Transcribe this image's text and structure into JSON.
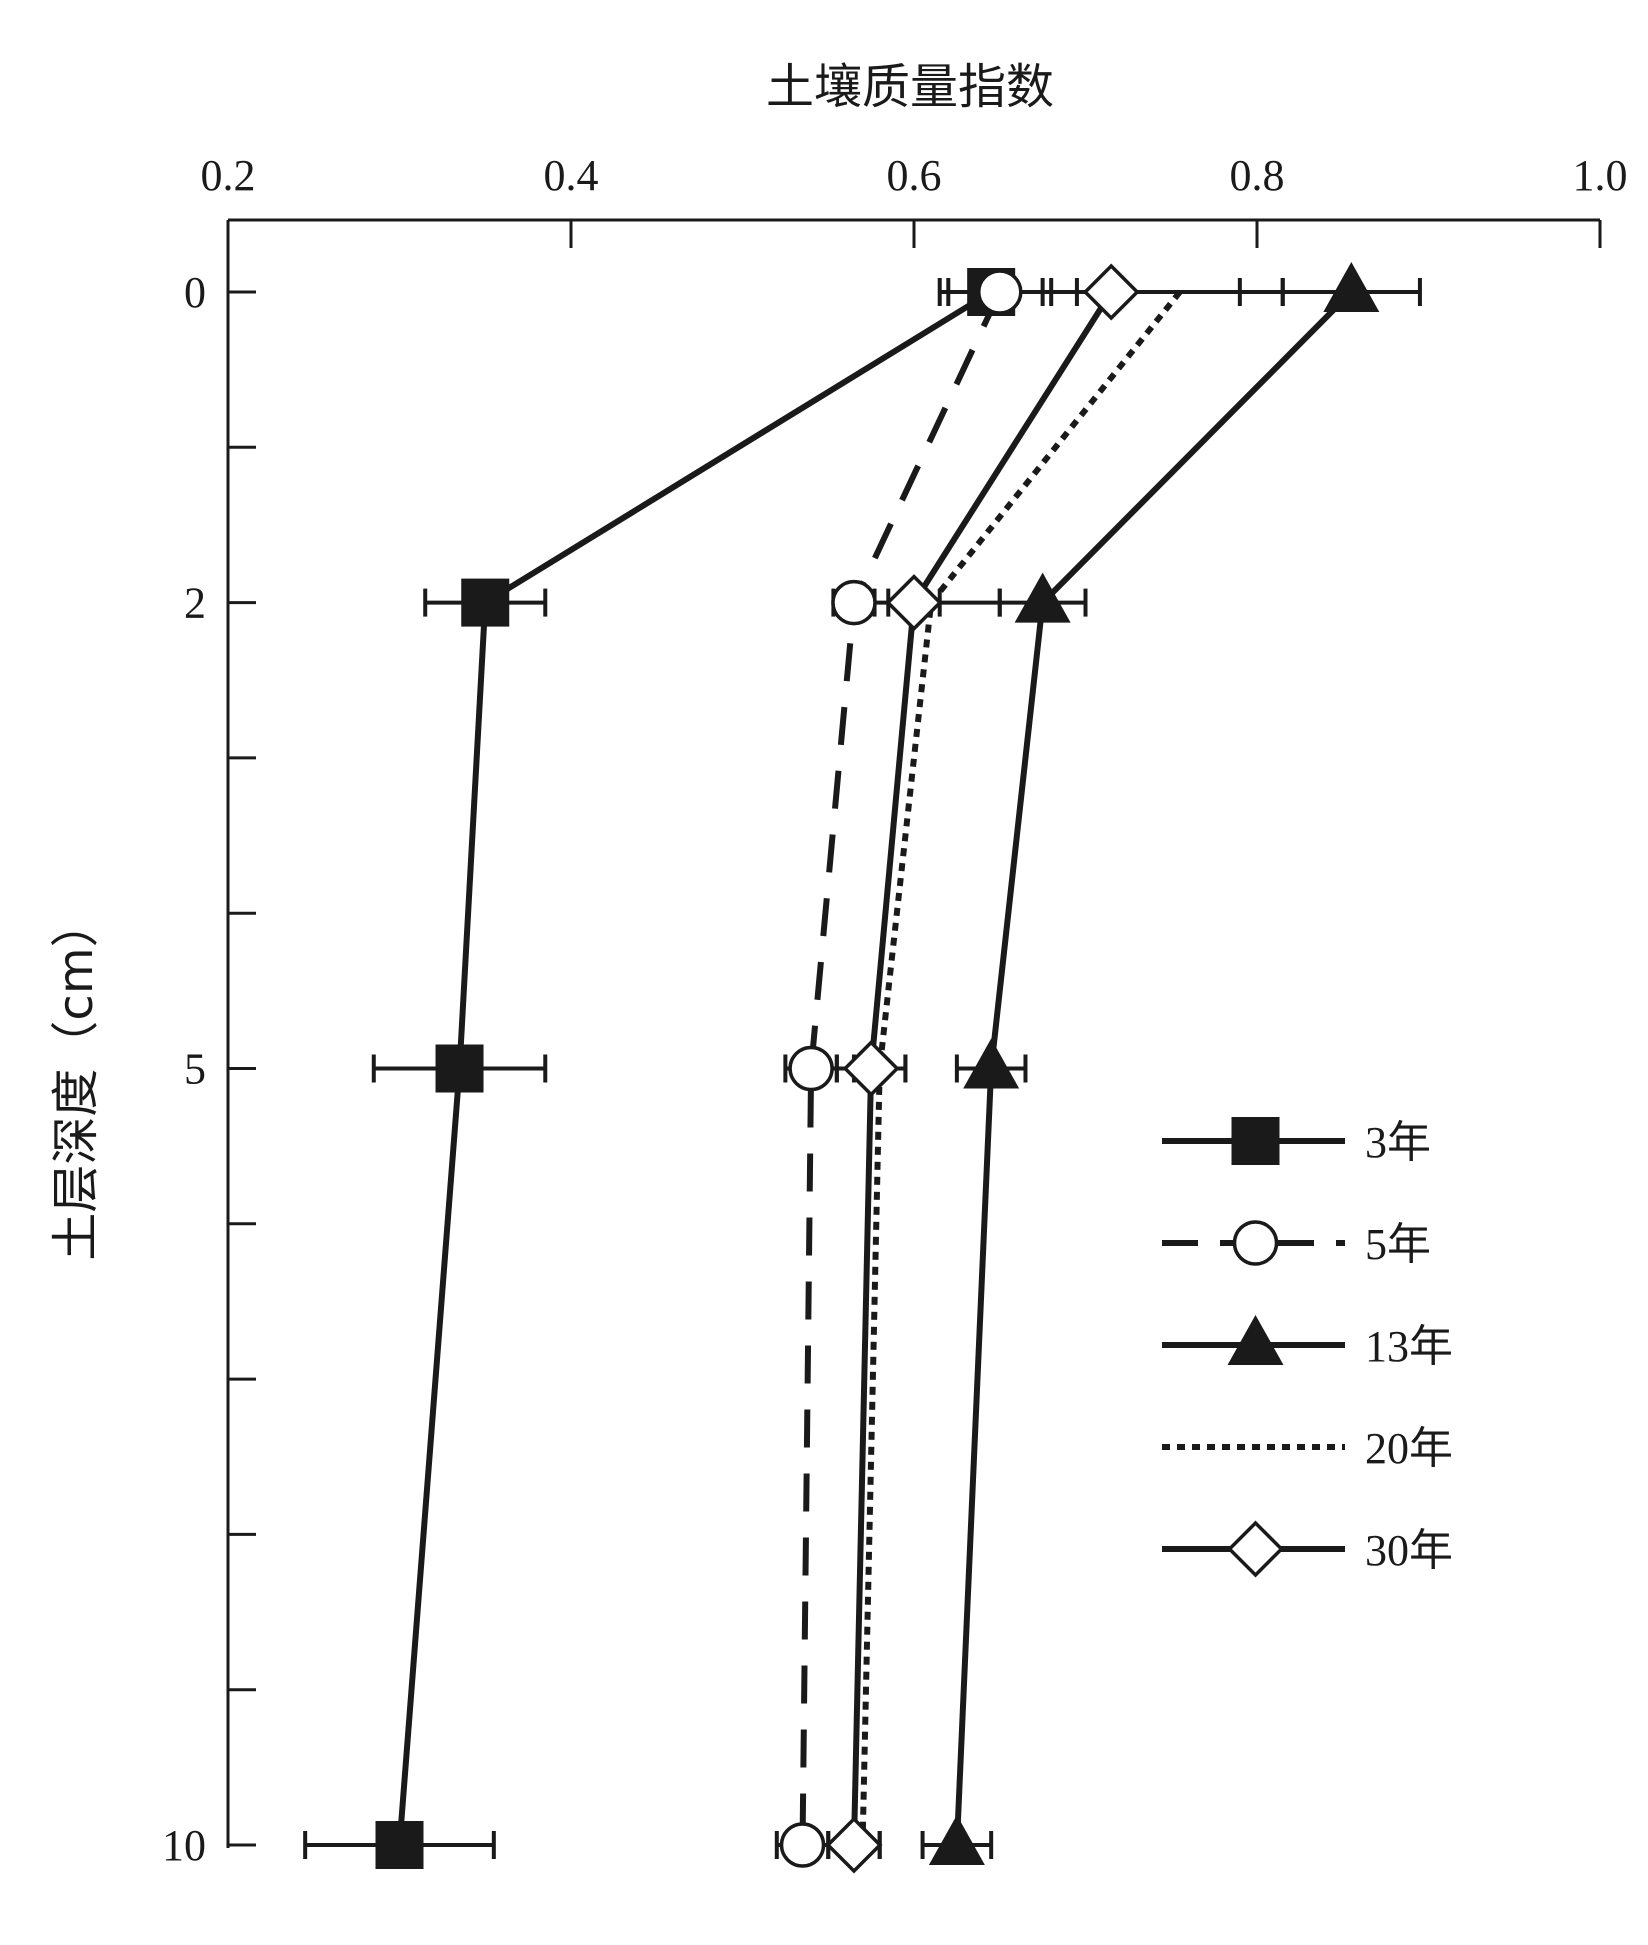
{
  "chart_data": {
    "type": "line",
    "orientation": "vertical-profile",
    "x_axis_position": "top",
    "xlabel": "土壤质量指数",
    "ylabel": "土层深度（cm）",
    "xlim": [
      0.2,
      1.0
    ],
    "ylim": [
      0,
      10.4
    ],
    "x_ticks": [
      "0.2",
      "0.4",
      "0.6",
      "0.8",
      "1.0"
    ],
    "x_tick_values": [
      0.2,
      0.4,
      0.6,
      0.8,
      1.0
    ],
    "y_ticks": [
      "0",
      "2",
      "5",
      "10"
    ],
    "y_tick_values": [
      0,
      2,
      5,
      10
    ],
    "y_minor_ticks": [
      1,
      3,
      4,
      6,
      7,
      8,
      9
    ],
    "y_categories_positions": [
      0,
      2,
      5,
      10
    ],
    "grid": false,
    "legend_position": "lower-right",
    "series": [
      {
        "name": "3年",
        "marker": "square-filled",
        "line": "solid",
        "x": [
          0.645,
          0.35,
          0.335,
          0.3
        ],
        "err": [
          0.03,
          0.035,
          0.05,
          0.055
        ]
      },
      {
        "name": "5年",
        "marker": "circle-open",
        "line": "dashed",
        "x": [
          0.65,
          0.565,
          0.54,
          0.535
        ],
        "err": [
          0.03,
          0.012,
          0.015,
          0.015
        ]
      },
      {
        "name": "13年",
        "marker": "triangle-filled",
        "line": "solid",
        "x": [
          0.855,
          0.675,
          0.645,
          0.625
        ],
        "err": [
          0.04,
          0.025,
          0.02,
          0.02
        ]
      },
      {
        "name": "20年",
        "marker": "none",
        "line": "dotted",
        "x": [
          0.755,
          0.61,
          0.58,
          0.57
        ],
        "err": [
          0.06,
          0.04,
          0.015,
          0.01
        ]
      },
      {
        "name": "30年",
        "marker": "diamond-open",
        "line": "solid",
        "x": [
          0.715,
          0.6,
          0.575,
          0.565
        ],
        "err": [
          0.075,
          0.015,
          0.02,
          0.015
        ]
      }
    ]
  }
}
